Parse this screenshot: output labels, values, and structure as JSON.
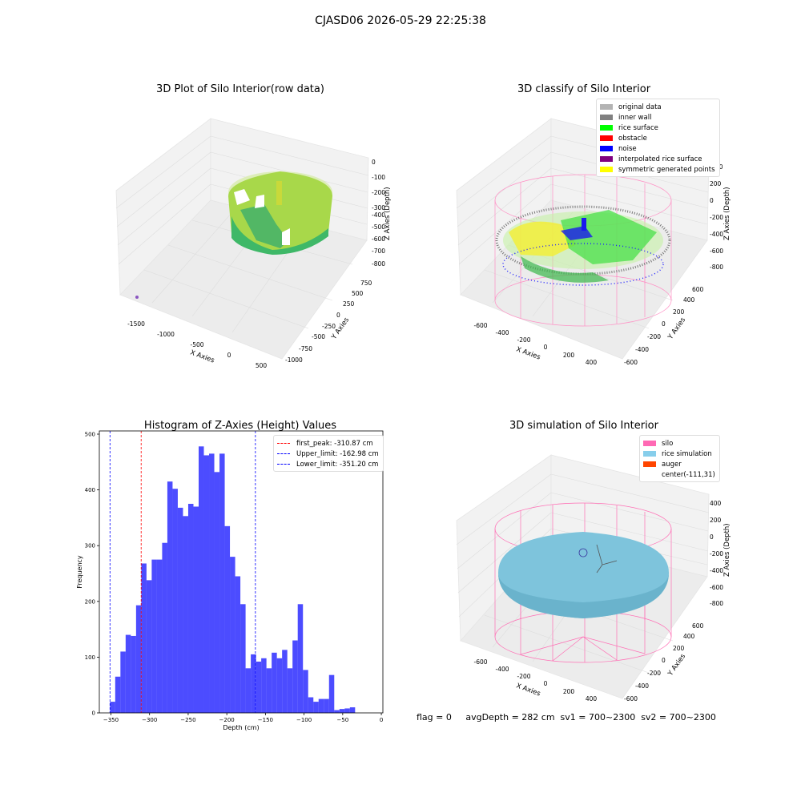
{
  "header": {
    "title": "CJASD06 2026-05-29 22:25:38"
  },
  "panels": {
    "raw": {
      "title": "3D Plot of Silo Interior(row data)",
      "x_ticks": [
        "-1500",
        "-1000",
        "-500",
        "0",
        "500"
      ],
      "y_ticks": [
        "-1000",
        "-750",
        "-500",
        "-250",
        "0",
        "250",
        "500",
        "750"
      ],
      "z_ticks": [
        "0",
        "-100",
        "-200",
        "-300",
        "-400",
        "-500",
        "-600",
        "-700",
        "-800"
      ],
      "xlabel": "X Axies",
      "ylabel": "Y Axies",
      "zlabel": "Z Axies (Depth)"
    },
    "classify": {
      "title": "3D classify of Silo Interior",
      "x_ticks": [
        "-600",
        "-400",
        "-200",
        "0",
        "200",
        "400"
      ],
      "y_ticks": [
        "-600",
        "-400",
        "-200",
        "0",
        "200",
        "400",
        "600"
      ],
      "z_ticks": [
        "200",
        "0",
        "-200",
        "-400",
        "-600",
        "-800"
      ],
      "z_top_partial": "00",
      "xlabel": "X Axies",
      "ylabel": "Y Axies",
      "zlabel": "Z Axies (Depth)",
      "legend": [
        {
          "label": "original data",
          "color": "#b3b3b3"
        },
        {
          "label": "inner wall",
          "color": "#808080"
        },
        {
          "label": "rice surface",
          "color": "#00ff00"
        },
        {
          "label": "obstacle",
          "color": "#ff0000"
        },
        {
          "label": "noise",
          "color": "#0000ff"
        },
        {
          "label": "interpolated rice surface",
          "color": "#800080"
        },
        {
          "label": "symmetric generated points",
          "color": "#ffff00"
        }
      ]
    },
    "simulation": {
      "title": "3D simulation of Silo Interior",
      "x_ticks": [
        "-600",
        "-400",
        "-200",
        "0",
        "200",
        "400"
      ],
      "y_ticks": [
        "-600",
        "-400",
        "-200",
        "0",
        "200",
        "400",
        "600"
      ],
      "z_ticks": [
        "400",
        "200",
        "0",
        "-200",
        "-400",
        "-600",
        "-800"
      ],
      "xlabel": "X Axies",
      "ylabel": "Y Axies",
      "zlabel": "Z Axies (Depth)",
      "legend": [
        {
          "label": "silo",
          "color": "#ff69b4"
        },
        {
          "label": "rice simulation",
          "color": "#87ceeb"
        },
        {
          "label": "auger",
          "color": "#ff4500"
        },
        {
          "label": "center(-111,31)",
          "color": ""
        }
      ]
    }
  },
  "footer": {
    "text": "flag = 0     avgDepth = 282 cm  sv1 = 700~2300  sv2 = 700~2300"
  },
  "chart_data": {
    "type": "bar",
    "title": "Histogram of Z-Axies (Height) Values",
    "xlabel": "Depth (cm)",
    "ylabel": "Frequency",
    "xlim": [
      -365,
      2
    ],
    "ylim": [
      0,
      500
    ],
    "x_ticks": [
      -350,
      -300,
      -250,
      -200,
      -150,
      -100,
      -50,
      0
    ],
    "y_ticks": [
      0,
      100,
      200,
      300,
      400,
      500
    ],
    "bin_start": -351.2,
    "bin_width": 6.75,
    "values": [
      20,
      65,
      110,
      140,
      138,
      193,
      268,
      238,
      275,
      275,
      305,
      415,
      402,
      368,
      353,
      375,
      370,
      478,
      462,
      465,
      432,
      465,
      335,
      280,
      245,
      195,
      80,
      105,
      92,
      98,
      80,
      108,
      98,
      113,
      80,
      130,
      195,
      77,
      28,
      20,
      25,
      25,
      68,
      5,
      7,
      8,
      10
    ],
    "bar_color": "#0000ff",
    "lines": [
      {
        "label": "first_peak: -310.87 cm",
        "value": -310.87,
        "color": "#ff0000"
      },
      {
        "label": "Upper_limit: -162.98 cm",
        "value": -162.98,
        "color": "#0000ff"
      },
      {
        "label": "Lower_limit: -351.20 cm",
        "value": -351.2,
        "color": "#0000ff"
      }
    ],
    "legend_position": "upper right"
  }
}
